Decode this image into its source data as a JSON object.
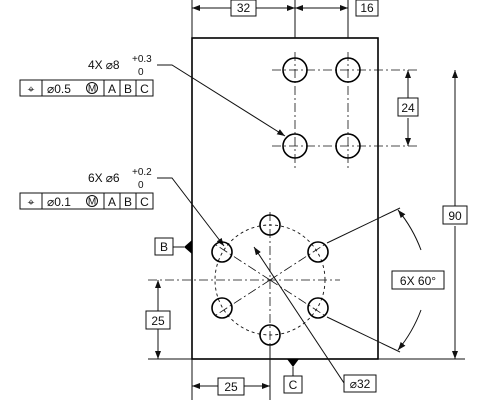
{
  "dimensions": {
    "top_left": "32",
    "top_right": "16",
    "pattern_spacing": "24",
    "plate_height": "90",
    "bottom_height": "25",
    "bottom_width": "25",
    "bolt_circle": "32",
    "angular": "6X 60°"
  },
  "callouts": {
    "large_holes": {
      "count": "4X",
      "diameter_symbol": "⌀",
      "nominal": "8",
      "tol_upper": "+0.3",
      "tol_lower": "0"
    },
    "small_holes": {
      "count": "6X",
      "diameter_symbol": "⌀",
      "nominal": "6",
      "tol_upper": "+0.2",
      "tol_lower": "0"
    }
  },
  "feature_control_frames": {
    "fcf1": {
      "symbol": "⌖",
      "tolerance": "⌀0.5",
      "modifier": "M",
      "datums": [
        "A",
        "B",
        "C"
      ]
    },
    "fcf2": {
      "symbol": "⌖",
      "tolerance": "⌀0.1",
      "modifier": "M",
      "datums": [
        "A",
        "B",
        "C"
      ]
    }
  },
  "datums": {
    "b": "B",
    "c": "C"
  }
}
